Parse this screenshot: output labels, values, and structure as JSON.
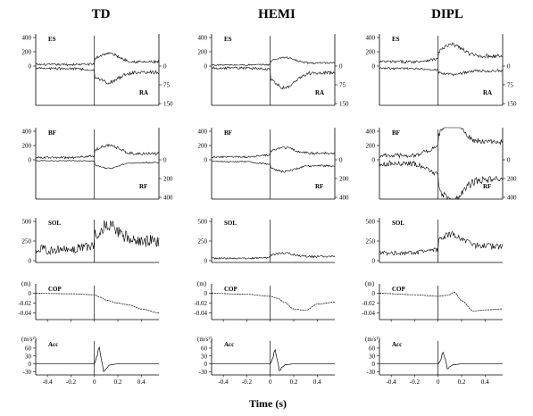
{
  "figure": {
    "xlabel": "Time (s)"
  },
  "chart_data": {
    "type": "line",
    "columns": [
      "TD",
      "HEMI",
      "DIPL"
    ],
    "x_range": [
      -0.5,
      0.55
    ],
    "x_ticks": [
      "-0.4",
      "-0.2",
      "0",
      "0.2",
      "0.4"
    ],
    "x_tick_values": [
      -0.4,
      -0.2,
      0,
      0.2,
      0.4
    ],
    "event_time": 0,
    "rows": [
      {
        "id": "es-ra",
        "left_label": "ES",
        "right_label": "RA",
        "left_ticks": [
          "400",
          "200",
          "0"
        ],
        "left_tick_values": [
          400,
          200,
          0
        ],
        "right_ticks": [
          "0",
          "75",
          "150"
        ],
        "right_tick_values": [
          0,
          75,
          150
        ],
        "series": {
          "TD": {
            "ES": {
              "baseline": 20,
              "pre": 8,
              "post": 120,
              "noise": 30
            },
            "RA": {
              "baseline": 10,
              "pre": 5,
              "post": 40,
              "noise": 10
            }
          },
          "HEMI": {
            "ES": {
              "baseline": 15,
              "pre": 6,
              "post": 80,
              "noise": 20
            },
            "RA": {
              "baseline": 8,
              "pre": 4,
              "post": 60,
              "noise": 10
            }
          },
          "DIPL": {
            "ES": {
              "baseline": 60,
              "pre": 40,
              "post": 160,
              "noise": 40
            },
            "RA": {
              "baseline": 10,
              "pre": 5,
              "post": 15,
              "noise": 8
            }
          }
        }
      },
      {
        "id": "bf-rf",
        "left_label": "BF",
        "right_label": "RF",
        "left_ticks": [
          "400",
          "200",
          "0"
        ],
        "left_tick_values": [
          400,
          200,
          0
        ],
        "right_ticks": [
          "0",
          "200",
          "400"
        ],
        "right_tick_values": [
          0,
          200,
          400
        ],
        "series": {
          "TD": {
            "BF": {
              "baseline": 30,
              "pre": 25,
              "post": 120,
              "noise": 30
            },
            "RF": {
              "baseline": 10,
              "pre": 5,
              "post": 60,
              "noise": 10
            }
          },
          "HEMI": {
            "BF": {
              "baseline": 40,
              "pre": 30,
              "post": 80,
              "noise": 25
            },
            "RF": {
              "baseline": 20,
              "pre": 30,
              "post": 60,
              "noise": 15
            }
          },
          "DIPL": {
            "BF": {
              "baseline": 60,
              "pre": 120,
              "post": 280,
              "noise": 60
            },
            "RF": {
              "baseline": 40,
              "pre": 120,
              "post": 230,
              "noise": 60
            }
          }
        }
      },
      {
        "id": "sol",
        "left_label": "SOL",
        "right_label": "",
        "left_ticks": [
          "500",
          "250",
          "0"
        ],
        "left_tick_values": [
          500,
          250,
          0
        ],
        "right_ticks": [],
        "right_tick_values": [],
        "series": {
          "TD": {
            "SOL": {
              "baseline": 140,
              "pre": 60,
              "post": 200,
              "noise": 120
            }
          },
          "HEMI": {
            "SOL": {
              "baseline": 30,
              "pre": 10,
              "post": 45,
              "noise": 20
            }
          },
          "DIPL": {
            "SOL": {
              "baseline": 100,
              "pre": 40,
              "post": 160,
              "noise": 60
            }
          }
        }
      },
      {
        "id": "cop",
        "left_label": "COP",
        "unit_label": "(m)",
        "right_label": "",
        "left_ticks": [
          "0",
          "-0.02",
          "-0.04"
        ],
        "left_tick_values": [
          0,
          -0.02,
          -0.04
        ],
        "y_range": [
          -0.05,
          0.012
        ],
        "right_ticks": [],
        "right_tick_values": [],
        "series": {
          "TD": {
            "COP": {
              "t": [
                -0.5,
                -0.2,
                0.0,
                0.05,
                0.1,
                0.2,
                0.3,
                0.4,
                0.55
              ],
              "y": [
                0.0,
                -0.001,
                -0.003,
                -0.008,
                -0.014,
                -0.02,
                -0.024,
                -0.032,
                -0.04
              ]
            }
          },
          "HEMI": {
            "COP": {
              "t": [
                -0.5,
                -0.2,
                0.0,
                0.06,
                0.12,
                0.2,
                0.3,
                0.4,
                0.55
              ],
              "y": [
                0.0,
                -0.002,
                -0.006,
                -0.01,
                -0.018,
                -0.032,
                -0.035,
                -0.022,
                -0.018
              ]
            }
          },
          "DIPL": {
            "COP": {
              "t": [
                -0.5,
                -0.2,
                0.0,
                0.08,
                0.14,
                0.2,
                0.3,
                0.4,
                0.55
              ],
              "y": [
                0.0,
                -0.003,
                -0.006,
                -0.004,
                0.002,
                -0.015,
                -0.036,
                -0.034,
                -0.032
              ]
            }
          }
        }
      },
      {
        "id": "acc",
        "left_label": "Acc",
        "unit_label": "(m/s²)",
        "right_label": "",
        "left_ticks": [
          "60",
          "30",
          "0",
          "-30"
        ],
        "left_tick_values": [
          60,
          30,
          0,
          -30
        ],
        "y_range": [
          -35,
          80
        ],
        "right_ticks": [],
        "right_tick_values": [],
        "series": {
          "TD": {
            "Acc": {
              "t": [
                -0.5,
                0.0,
                0.02,
                0.04,
                0.06,
                0.08,
                0.1,
                0.13,
                0.2,
                0.55
              ],
              "y": [
                0,
                0,
                25,
                65,
                15,
                -30,
                -18,
                -4,
                0,
                0
              ]
            }
          },
          "HEMI": {
            "Acc": {
              "t": [
                -0.5,
                0.0,
                0.02,
                0.04,
                0.06,
                0.08,
                0.1,
                0.13,
                0.2,
                0.55
              ],
              "y": [
                0,
                0,
                20,
                55,
                15,
                -28,
                -12,
                -3,
                0,
                0
              ]
            }
          },
          "DIPL": {
            "Acc": {
              "t": [
                -0.5,
                0.0,
                0.02,
                0.04,
                0.06,
                0.08,
                0.1,
                0.13,
                0.2,
                0.55
              ],
              "y": [
                0,
                0,
                12,
                45,
                20,
                -20,
                -10,
                -3,
                0,
                0
              ]
            }
          }
        }
      }
    ]
  }
}
